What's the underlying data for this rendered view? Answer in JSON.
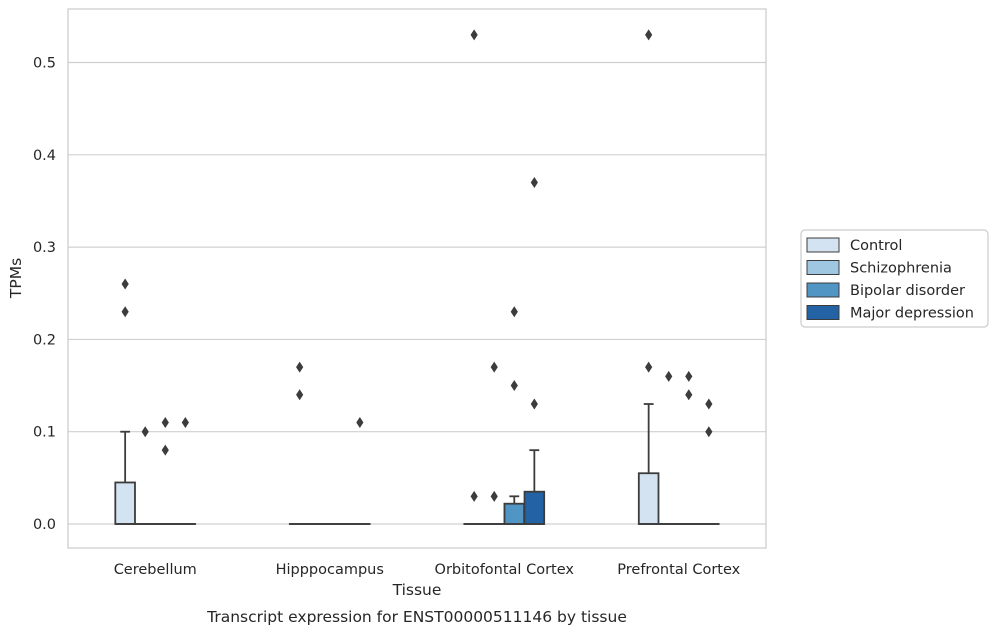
{
  "chart_data": {
    "type": "box",
    "title": "",
    "xlabel": "Tissue",
    "ylabel": "TPMs",
    "caption": "Transcript expression for ENST00000511146 by tissue",
    "ylim": [
      -0.026,
      0.558
    ],
    "yticks": [
      "0.0",
      "0.1",
      "0.2",
      "0.3",
      "0.4",
      "0.5"
    ],
    "ytick_values": [
      0.0,
      0.1,
      0.2,
      0.3,
      0.4,
      0.5
    ],
    "grid": true,
    "legend_position": "right",
    "categories": [
      "Cerebellum",
      "Hipppocampus",
      "Orbitofontal Cortex",
      "Prefrontal Cortex"
    ],
    "series": [
      {
        "name": "Control",
        "color": "#d4e3f1",
        "boxes": [
          {
            "q1": 0,
            "median": 0,
            "q3": 0.045,
            "whisker_low": 0,
            "whisker_high": 0.1,
            "outliers": [
              0.26,
              0.23
            ]
          },
          {
            "q1": 0,
            "median": 0,
            "q3": 0,
            "whisker_low": 0,
            "whisker_high": 0,
            "outliers": [
              0.17,
              0.14
            ]
          },
          {
            "q1": 0,
            "median": 0,
            "q3": 0,
            "whisker_low": 0,
            "whisker_high": 0,
            "outliers": [
              0.03,
              0.53
            ]
          },
          {
            "q1": 0,
            "median": 0,
            "q3": 0.055,
            "whisker_low": 0,
            "whisker_high": 0.13,
            "outliers": [
              0.53,
              0.17
            ]
          }
        ]
      },
      {
        "name": "Schizophrenia",
        "color": "#9fc7e2",
        "boxes": [
          {
            "q1": 0,
            "median": 0,
            "q3": 0,
            "whisker_low": 0,
            "whisker_high": 0,
            "outliers": [
              0.1
            ]
          },
          {
            "q1": 0,
            "median": 0,
            "q3": 0,
            "whisker_low": 0,
            "whisker_high": 0,
            "outliers": []
          },
          {
            "q1": 0,
            "median": 0,
            "q3": 0,
            "whisker_low": 0,
            "whisker_high": 0,
            "outliers": [
              0.17,
              0.03
            ]
          },
          {
            "q1": 0,
            "median": 0,
            "q3": 0,
            "whisker_low": 0,
            "whisker_high": 0,
            "outliers": [
              0.16
            ]
          }
        ]
      },
      {
        "name": "Bipolar disorder",
        "color": "#5195c4",
        "boxes": [
          {
            "q1": 0,
            "median": 0,
            "q3": 0,
            "whisker_low": 0,
            "whisker_high": 0,
            "outliers": [
              0.11,
              0.08
            ]
          },
          {
            "q1": 0,
            "median": 0,
            "q3": 0,
            "whisker_low": 0,
            "whisker_high": 0,
            "outliers": []
          },
          {
            "q1": 0,
            "median": 0,
            "q3": 0.022,
            "whisker_low": 0,
            "whisker_high": 0.03,
            "outliers": [
              0.23,
              0.15
            ]
          },
          {
            "q1": 0,
            "median": 0,
            "q3": 0,
            "whisker_low": 0,
            "whisker_high": 0,
            "outliers": [
              0.16,
              0.14
            ]
          }
        ]
      },
      {
        "name": "Major depression",
        "color": "#2462a6",
        "boxes": [
          {
            "q1": 0,
            "median": 0,
            "q3": 0,
            "whisker_low": 0,
            "whisker_high": 0,
            "outliers": [
              0.11
            ]
          },
          {
            "q1": 0,
            "median": 0,
            "q3": 0,
            "whisker_low": 0,
            "whisker_high": 0,
            "outliers": [
              0.11
            ]
          },
          {
            "q1": 0,
            "median": 0,
            "q3": 0.035,
            "whisker_low": 0,
            "whisker_high": 0.08,
            "outliers": [
              0.37,
              0.13
            ]
          },
          {
            "q1": 0,
            "median": 0,
            "q3": 0,
            "whisker_low": 0,
            "whisker_high": 0,
            "outliers": [
              0.13,
              0.1
            ]
          }
        ]
      }
    ]
  }
}
